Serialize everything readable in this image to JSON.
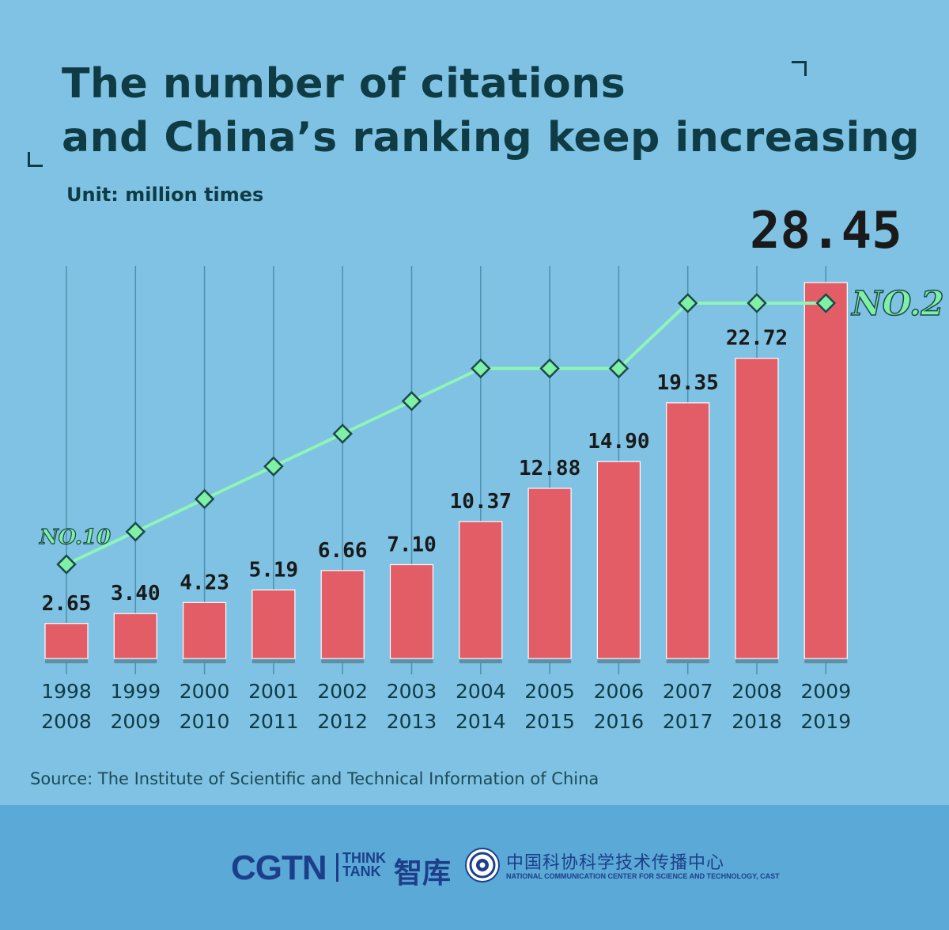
{
  "header": {
    "title_line1": "The number of citations",
    "title_line2": "and China’s ranking keep increasing",
    "unit": "Unit: million times"
  },
  "chart_data": {
    "type": "bar",
    "categories": [
      "1998\n2008",
      "1999\n2009",
      "2000\n2010",
      "2001\n2011",
      "2002\n2012",
      "2003\n2013",
      "2004\n2014",
      "2005\n2015",
      "2006\n2016",
      "2007\n2017",
      "2008\n2018",
      "2009\n2019"
    ],
    "series": [
      {
        "values": [
          2.65,
          3.4,
          4.23,
          5.19,
          6.66,
          7.1,
          10.37,
          12.88,
          14.9,
          19.35,
          22.72,
          28.45
        ]
      }
    ],
    "value_labels": [
      "2.65",
      "3.40",
      "4.23",
      "5.19",
      "6.66",
      "7.10",
      "10.37",
      "12.88",
      "14.90",
      "19.35",
      "22.72",
      "28.45"
    ],
    "ranking_line": {
      "type": "line",
      "ranks": [
        10,
        9,
        8,
        7,
        6,
        5,
        4,
        4,
        4,
        2,
        2,
        2
      ],
      "start_label": "NO.10",
      "end_label": "NO.2"
    },
    "ylabel": "Unit: million times",
    "ylim": [
      0,
      28.45
    ],
    "grid": "vertical lines",
    "colors": {
      "bar": "#e35d66",
      "line": "#8ef5b6",
      "marker": "#7ff0a6",
      "grid": "#4e8fac",
      "text": "#0f3b44"
    }
  },
  "source": "Source: The Institute of Scientific and Technical Information of China",
  "footer": {
    "cgtn": "CGTN",
    "think": "THINK",
    "tank": "TANK",
    "zhiku": "智库",
    "cast_cn": "中国科协科学技术传播中心",
    "cast_en": "NATIONAL COMMUNICATION CENTER FOR SCIENCE AND TECHNOLOGY, CAST"
  }
}
